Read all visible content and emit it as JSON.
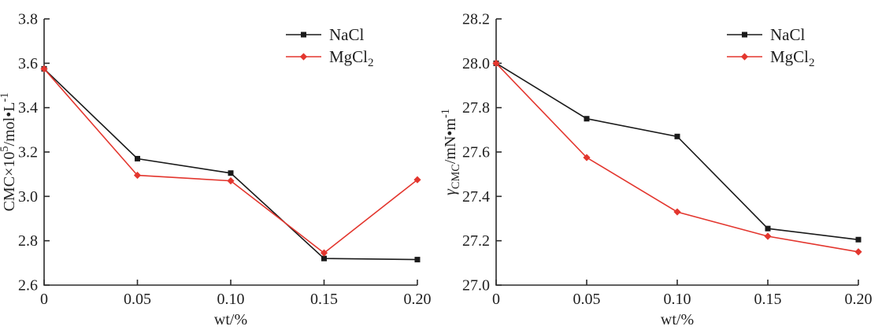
{
  "figure": {
    "background": "#ffffff",
    "axis_color": "#2b2b2b",
    "text_color": "#1f1f1f"
  },
  "chart_data": [
    {
      "type": "line",
      "id": "cmc-vs-wt",
      "title": "",
      "xlabel": "wt/%",
      "ylabel": "CMC×10^5/mol·L^-1",
      "ylabel_parts": [
        {
          "t": "CMC×10"
        },
        {
          "t": "5",
          "sup": true
        },
        {
          "t": "/mol•L"
        },
        {
          "t": "-1",
          "sup": true
        }
      ],
      "xlim": [
        0,
        0.2
      ],
      "ylim": [
        2.6,
        3.8
      ],
      "xticks": [
        0,
        0.05,
        0.1,
        0.15,
        0.2
      ],
      "xtick_labels": [
        "0",
        "0.05",
        "0.10",
        "0.15",
        "0.20"
      ],
      "yticks": [
        2.6,
        2.8,
        3.0,
        3.2,
        3.4,
        3.6,
        3.8
      ],
      "ytick_labels": [
        "2.6",
        "2.8",
        "3.0",
        "3.2",
        "3.4",
        "3.6",
        "3.8"
      ],
      "grid": false,
      "legend_position": "top-right-inside",
      "x": [
        0,
        0.05,
        0.1,
        0.15,
        0.2
      ],
      "series": [
        {
          "name": "NaCl",
          "label_parts": [
            {
              "t": "NaCl"
            }
          ],
          "color": "#1a1a1a",
          "marker": "square",
          "values": [
            3.575,
            3.17,
            3.105,
            2.72,
            2.715
          ]
        },
        {
          "name": "MgCl2",
          "label_parts": [
            {
              "t": "MgCl"
            },
            {
              "t": "2",
              "sub": true
            }
          ],
          "color": "#e3362e",
          "marker": "diamond",
          "values": [
            3.575,
            3.095,
            3.07,
            2.745,
            3.075
          ]
        }
      ]
    },
    {
      "type": "line",
      "id": "surface-tension-vs-wt",
      "title": "",
      "xlabel": "wt/%",
      "ylabel": "γ_CMC/mN·m^-1",
      "ylabel_parts": [
        {
          "t": "γ",
          "italic": true
        },
        {
          "t": "CMC",
          "sub": true
        },
        {
          "t": "/mN•m"
        },
        {
          "t": "-1",
          "sup": true
        }
      ],
      "xlim": [
        0,
        0.2
      ],
      "ylim": [
        27.0,
        28.2
      ],
      "xticks": [
        0,
        0.05,
        0.1,
        0.15,
        0.2
      ],
      "xtick_labels": [
        "0",
        "0.05",
        "0.10",
        "0.15",
        "0.20"
      ],
      "yticks": [
        27.0,
        27.2,
        27.4,
        27.6,
        27.8,
        28.0,
        28.2
      ],
      "ytick_labels": [
        "27.0",
        "27.2",
        "27.4",
        "27.6",
        "27.8",
        "28.0",
        "28.2"
      ],
      "grid": false,
      "legend_position": "top-right-inside",
      "x": [
        0,
        0.05,
        0.1,
        0.15,
        0.2
      ],
      "series": [
        {
          "name": "NaCl",
          "label_parts": [
            {
              "t": "NaCl"
            }
          ],
          "color": "#1a1a1a",
          "marker": "square",
          "values": [
            28.0,
            27.75,
            27.67,
            27.255,
            27.205
          ]
        },
        {
          "name": "MgCl2",
          "label_parts": [
            {
              "t": "MgCl"
            },
            {
              "t": "2",
              "sub": true
            }
          ],
          "color": "#e3362e",
          "marker": "diamond",
          "values": [
            28.0,
            27.575,
            27.33,
            27.22,
            27.15
          ]
        }
      ]
    }
  ]
}
